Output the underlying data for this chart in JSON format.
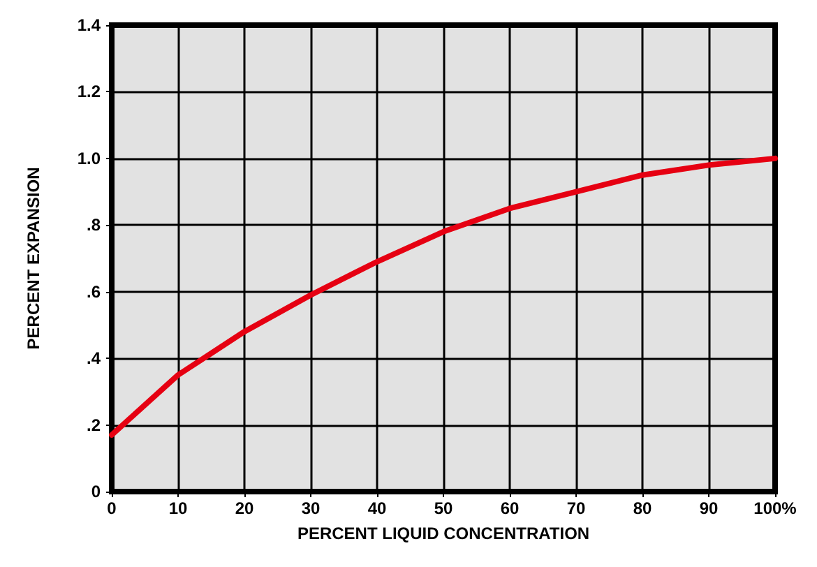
{
  "chart_data": {
    "type": "line",
    "xlabel": "PERCENT LIQUID CONCENTRATION",
    "ylabel": "PERCENT EXPANSION",
    "x": [
      0,
      10,
      20,
      30,
      40,
      50,
      60,
      70,
      80,
      90,
      100
    ],
    "series": [
      {
        "color": "#e60012",
        "values": [
          0.17,
          0.35,
          0.48,
          0.59,
          0.69,
          0.78,
          0.85,
          0.9,
          0.95,
          0.98,
          1.0
        ]
      }
    ],
    "xlim": [
      0,
      100
    ],
    "ylim": [
      0,
      1.4
    ],
    "xticks": [
      0,
      10,
      20,
      30,
      40,
      50,
      60,
      70,
      80,
      90,
      {
        "value": 100,
        "label": "100%"
      }
    ],
    "yticks": [
      0,
      {
        "value": 0.2,
        "label": ".2"
      },
      {
        "value": 0.4,
        "label": ".4"
      },
      {
        "value": 0.6,
        "label": ".6"
      },
      {
        "value": 0.8,
        "label": ".8"
      },
      {
        "value": 1.0,
        "label": "1.0"
      },
      {
        "value": 1.2,
        "label": "1.2"
      },
      {
        "value": 1.4,
        "label": "1.4"
      }
    ],
    "grid": true,
    "marker": "none",
    "line_style": "solid"
  }
}
